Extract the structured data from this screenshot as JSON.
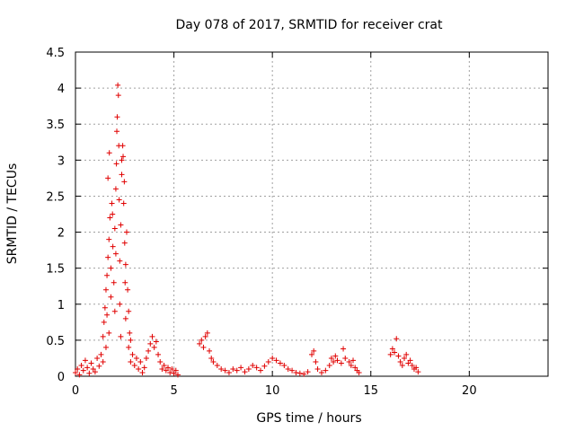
{
  "chart_data": {
    "type": "scatter",
    "title": "Day 078 of 2017, SRMTID for receiver crat",
    "xlabel": "GPS time / hours",
    "ylabel": "SRMTID / TECUs",
    "xlim": [
      0,
      24
    ],
    "ylim": [
      0,
      4.5
    ],
    "xticks": [
      "0",
      "5",
      "10",
      "15",
      "20"
    ],
    "yticks": [
      "0",
      "0.5",
      "1",
      "1.5",
      "2",
      "2.5",
      "3",
      "3.5",
      "4",
      "4.5"
    ],
    "grid": true,
    "marker": "+",
    "color": "#e00000",
    "series": [
      {
        "name": "SRMTID",
        "points": [
          [
            0.0,
            0.05
          ],
          [
            0.1,
            0.1
          ],
          [
            0.2,
            0.02
          ],
          [
            0.3,
            0.15
          ],
          [
            0.4,
            0.08
          ],
          [
            0.5,
            0.22
          ],
          [
            0.6,
            0.12
          ],
          [
            0.7,
            0.04
          ],
          [
            0.8,
            0.18
          ],
          [
            0.9,
            0.1
          ],
          [
            1.0,
            0.06
          ],
          [
            1.1,
            0.25
          ],
          [
            1.2,
            0.14
          ],
          [
            1.3,
            0.3
          ],
          [
            1.4,
            0.55
          ],
          [
            1.4,
            0.2
          ],
          [
            1.45,
            0.75
          ],
          [
            1.5,
            0.95
          ],
          [
            1.55,
            1.2
          ],
          [
            1.55,
            0.4
          ],
          [
            1.6,
            1.4
          ],
          [
            1.6,
            0.85
          ],
          [
            1.65,
            1.65
          ],
          [
            1.65,
            2.75
          ],
          [
            1.7,
            1.9
          ],
          [
            1.7,
            0.6
          ],
          [
            1.72,
            3.1
          ],
          [
            1.75,
            2.2
          ],
          [
            1.8,
            1.5
          ],
          [
            1.8,
            1.1
          ],
          [
            1.85,
            2.4
          ],
          [
            1.88,
            2.25
          ],
          [
            1.9,
            1.8
          ],
          [
            1.95,
            1.3
          ],
          [
            2.0,
            2.05
          ],
          [
            2.0,
            0.9
          ],
          [
            2.05,
            2.6
          ],
          [
            2.05,
            1.7
          ],
          [
            2.08,
            2.95
          ],
          [
            2.1,
            3.4
          ],
          [
            2.12,
            3.6
          ],
          [
            2.15,
            4.04
          ],
          [
            2.18,
            3.9
          ],
          [
            2.2,
            3.2
          ],
          [
            2.22,
            2.45
          ],
          [
            2.25,
            1.6
          ],
          [
            2.25,
            1.0
          ],
          [
            2.3,
            2.1
          ],
          [
            2.3,
            0.55
          ],
          [
            2.35,
            3.0
          ],
          [
            2.35,
            2.8
          ],
          [
            2.4,
            3.2
          ],
          [
            2.42,
            3.05
          ],
          [
            2.45,
            2.4
          ],
          [
            2.48,
            2.7
          ],
          [
            2.5,
            1.85
          ],
          [
            2.52,
            1.3
          ],
          [
            2.55,
            0.8
          ],
          [
            2.55,
            1.55
          ],
          [
            2.6,
            2.0
          ],
          [
            2.65,
            1.2
          ],
          [
            2.7,
            0.9
          ],
          [
            2.7,
            0.4
          ],
          [
            2.75,
            0.6
          ],
          [
            2.8,
            0.5
          ],
          [
            2.8,
            0.2
          ],
          [
            2.9,
            0.3
          ],
          [
            3.0,
            0.15
          ],
          [
            3.1,
            0.25
          ],
          [
            3.2,
            0.1
          ],
          [
            3.3,
            0.2
          ],
          [
            3.4,
            0.05
          ],
          [
            3.5,
            0.12
          ],
          [
            3.6,
            0.25
          ],
          [
            3.7,
            0.35
          ],
          [
            3.8,
            0.45
          ],
          [
            3.9,
            0.55
          ],
          [
            4.0,
            0.4
          ],
          [
            4.1,
            0.48
          ],
          [
            4.2,
            0.3
          ],
          [
            4.3,
            0.2
          ],
          [
            4.4,
            0.1
          ],
          [
            4.5,
            0.15
          ],
          [
            4.6,
            0.08
          ],
          [
            4.7,
            0.12
          ],
          [
            4.8,
            0.05
          ],
          [
            4.9,
            0.1
          ],
          [
            5.0,
            0.04
          ],
          [
            5.1,
            0.08
          ],
          [
            5.2,
            0.02
          ],
          [
            6.3,
            0.45
          ],
          [
            6.4,
            0.5
          ],
          [
            6.5,
            0.4
          ],
          [
            6.6,
            0.55
          ],
          [
            6.7,
            0.6
          ],
          [
            6.8,
            0.35
          ],
          [
            6.9,
            0.25
          ],
          [
            7.0,
            0.2
          ],
          [
            7.2,
            0.15
          ],
          [
            7.4,
            0.1
          ],
          [
            7.6,
            0.08
          ],
          [
            7.8,
            0.05
          ],
          [
            8.0,
            0.1
          ],
          [
            8.2,
            0.08
          ],
          [
            8.4,
            0.12
          ],
          [
            8.6,
            0.06
          ],
          [
            8.8,
            0.1
          ],
          [
            9.0,
            0.15
          ],
          [
            9.2,
            0.12
          ],
          [
            9.4,
            0.08
          ],
          [
            9.6,
            0.14
          ],
          [
            9.8,
            0.2
          ],
          [
            10.0,
            0.25
          ],
          [
            10.2,
            0.22
          ],
          [
            10.4,
            0.18
          ],
          [
            10.6,
            0.15
          ],
          [
            10.8,
            0.1
          ],
          [
            11.0,
            0.08
          ],
          [
            11.2,
            0.05
          ],
          [
            11.4,
            0.04
          ],
          [
            11.6,
            0.03
          ],
          [
            11.8,
            0.06
          ],
          [
            12.0,
            0.3
          ],
          [
            12.1,
            0.35
          ],
          [
            12.2,
            0.2
          ],
          [
            12.3,
            0.1
          ],
          [
            12.5,
            0.05
          ],
          [
            12.7,
            0.08
          ],
          [
            12.9,
            0.15
          ],
          [
            13.0,
            0.25
          ],
          [
            13.1,
            0.2
          ],
          [
            13.2,
            0.28
          ],
          [
            13.3,
            0.22
          ],
          [
            13.5,
            0.18
          ],
          [
            13.6,
            0.38
          ],
          [
            13.7,
            0.25
          ],
          [
            13.9,
            0.2
          ],
          [
            14.0,
            0.15
          ],
          [
            14.1,
            0.22
          ],
          [
            14.2,
            0.12
          ],
          [
            14.3,
            0.08
          ],
          [
            14.4,
            0.05
          ],
          [
            16.0,
            0.3
          ],
          [
            16.1,
            0.38
          ],
          [
            16.2,
            0.33
          ],
          [
            16.3,
            0.52
          ],
          [
            16.4,
            0.28
          ],
          [
            16.5,
            0.2
          ],
          [
            16.6,
            0.15
          ],
          [
            16.7,
            0.25
          ],
          [
            16.8,
            0.3
          ],
          [
            16.9,
            0.18
          ],
          [
            17.0,
            0.22
          ],
          [
            17.1,
            0.15
          ],
          [
            17.2,
            0.1
          ],
          [
            17.3,
            0.12
          ],
          [
            17.4,
            0.06
          ]
        ]
      }
    ]
  }
}
